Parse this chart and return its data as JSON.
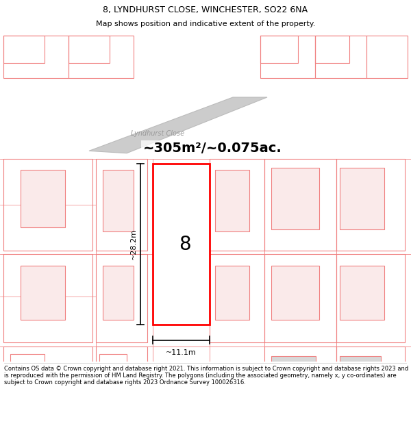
{
  "title": "8, LYNDHURST CLOSE, WINCHESTER, SO22 6NA",
  "subtitle": "Map shows position and indicative extent of the property.",
  "area_text": "~305m²/~0.075ac.",
  "street_label": "Lyndhurst Close",
  "number_label": "8",
  "dim_width": "~11.1m",
  "dim_height": "~28.2m",
  "footer": "Contains OS data © Crown copyright and database right 2021. This information is subject to Crown copyright and database rights 2023 and is reproduced with the permission of HM Land Registry. The polygons (including the associated geometry, namely x, y co-ordinates) are subject to Crown copyright and database rights 2023 Ordnance Survey 100026316.",
  "bg_color": "#ffffff",
  "plot_color": "#ff0000",
  "neighbor_line": "#f08080",
  "gray_fill": "#d8d8d8",
  "light_pink_fill": "#faeaea",
  "road_fill": "#cccccc",
  "road_edge": "#bbbbbb",
  "title_fontsize": 9,
  "subtitle_fontsize": 8,
  "footer_fontsize": 6.0
}
